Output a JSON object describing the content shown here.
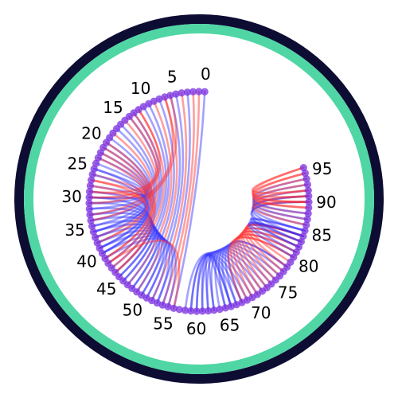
{
  "frame": {
    "outer_ring_color": "#0d0c33",
    "inner_ring_color": "#4fd6a4",
    "background_color": "#ffffff"
  },
  "node_color": "#7a2fe0",
  "tick_labels": [
    "0",
    "5",
    "10",
    "15",
    "20",
    "25",
    "30",
    "35",
    "40",
    "45",
    "50",
    "55",
    "60",
    "65",
    "70",
    "75",
    "80",
    "85",
    "90",
    "95"
  ],
  "link_colors": {
    "red": "#ff2a2a",
    "blue": "#3030ff"
  },
  "chart_data": {
    "type": "chord",
    "nodes": {
      "start": 0,
      "end": 96,
      "label_step": 5
    },
    "links": [
      {
        "source": 0,
        "target": 56,
        "color": "blue"
      },
      {
        "source": 1,
        "target": 55,
        "color": "red"
      },
      {
        "source": 2,
        "target": 54,
        "color": "red"
      },
      {
        "source": 3,
        "target": 53,
        "color": "blue"
      },
      {
        "source": 4,
        "target": 52,
        "color": "red"
      },
      {
        "source": 5,
        "target": 51,
        "color": "blue"
      },
      {
        "source": 6,
        "target": 50,
        "color": "blue"
      },
      {
        "source": 7,
        "target": 49,
        "color": "red"
      },
      {
        "source": 8,
        "target": 48,
        "color": "blue"
      },
      {
        "source": 9,
        "target": 47,
        "color": "red"
      },
      {
        "source": 10,
        "target": 46,
        "color": "blue"
      },
      {
        "source": 11,
        "target": 45,
        "color": "blue"
      },
      {
        "source": 12,
        "target": 44,
        "color": "red"
      },
      {
        "source": 13,
        "target": 43,
        "color": "blue"
      },
      {
        "source": 14,
        "target": 42,
        "color": "blue"
      },
      {
        "source": 15,
        "target": 41,
        "color": "red"
      },
      {
        "source": 16,
        "target": 40,
        "color": "blue"
      },
      {
        "source": 17,
        "target": 39,
        "color": "blue"
      },
      {
        "source": 18,
        "target": 38,
        "color": "red"
      },
      {
        "source": 19,
        "target": 37,
        "color": "blue"
      },
      {
        "source": 20,
        "target": 36,
        "color": "blue"
      },
      {
        "source": 21,
        "target": 35,
        "color": "blue"
      },
      {
        "source": 22,
        "target": 34,
        "color": "blue"
      },
      {
        "source": 23,
        "target": 33,
        "color": "blue"
      },
      {
        "source": 24,
        "target": 32,
        "color": "blue"
      },
      {
        "source": 25,
        "target": 31,
        "color": "blue"
      },
      {
        "source": 26,
        "target": 30,
        "color": "red"
      },
      {
        "source": 27,
        "target": 29,
        "color": "red"
      },
      {
        "source": 28,
        "target": 30,
        "color": "blue"
      },
      {
        "source": 25,
        "target": 40,
        "color": "blue"
      },
      {
        "source": 26,
        "target": 39,
        "color": "blue"
      },
      {
        "source": 27,
        "target": 38,
        "color": "red"
      },
      {
        "source": 28,
        "target": 37,
        "color": "red"
      },
      {
        "source": 29,
        "target": 36,
        "color": "blue"
      },
      {
        "source": 30,
        "target": 44,
        "color": "blue"
      },
      {
        "source": 31,
        "target": 45,
        "color": "blue"
      },
      {
        "source": 32,
        "target": 46,
        "color": "blue"
      },
      {
        "source": 33,
        "target": 47,
        "color": "blue"
      },
      {
        "source": 34,
        "target": 48,
        "color": "blue"
      },
      {
        "source": 35,
        "target": 49,
        "color": "blue"
      },
      {
        "source": 36,
        "target": 50,
        "color": "blue"
      },
      {
        "source": 37,
        "target": 51,
        "color": "blue"
      },
      {
        "source": 38,
        "target": 52,
        "color": "blue"
      },
      {
        "source": 39,
        "target": 53,
        "color": "blue"
      },
      {
        "source": 40,
        "target": 54,
        "color": "blue"
      },
      {
        "source": 41,
        "target": 55,
        "color": "blue"
      },
      {
        "source": 42,
        "target": 56,
        "color": "red"
      },
      {
        "source": 20,
        "target": 44,
        "color": "red"
      },
      {
        "source": 21,
        "target": 43,
        "color": "red"
      },
      {
        "source": 22,
        "target": 42,
        "color": "red"
      },
      {
        "source": 23,
        "target": 41,
        "color": "red"
      },
      {
        "source": 12,
        "target": 31,
        "color": "red"
      },
      {
        "source": 13,
        "target": 30,
        "color": "red"
      },
      {
        "source": 14,
        "target": 29,
        "color": "red"
      },
      {
        "source": 6,
        "target": 34,
        "color": "red"
      },
      {
        "source": 7,
        "target": 33,
        "color": "red"
      },
      {
        "source": 58,
        "target": 69,
        "color": "blue"
      },
      {
        "source": 59,
        "target": 68,
        "color": "blue"
      },
      {
        "source": 60,
        "target": 67,
        "color": "blue"
      },
      {
        "source": 61,
        "target": 66,
        "color": "blue"
      },
      {
        "source": 62,
        "target": 65,
        "color": "blue"
      },
      {
        "source": 63,
        "target": 66,
        "color": "blue"
      },
      {
        "source": 59,
        "target": 70,
        "color": "blue"
      },
      {
        "source": 60,
        "target": 71,
        "color": "blue"
      },
      {
        "source": 61,
        "target": 72,
        "color": "blue"
      },
      {
        "source": 62,
        "target": 73,
        "color": "blue"
      },
      {
        "source": 63,
        "target": 74,
        "color": "blue"
      },
      {
        "source": 64,
        "target": 75,
        "color": "blue"
      },
      {
        "source": 65,
        "target": 76,
        "color": "blue"
      },
      {
        "source": 66,
        "target": 77,
        "color": "blue"
      },
      {
        "source": 67,
        "target": 78,
        "color": "blue"
      },
      {
        "source": 68,
        "target": 78,
        "color": "blue"
      },
      {
        "source": 68,
        "target": 80,
        "color": "red"
      },
      {
        "source": 69,
        "target": 80,
        "color": "red"
      },
      {
        "source": 70,
        "target": 81,
        "color": "red"
      },
      {
        "source": 71,
        "target": 81,
        "color": "red"
      },
      {
        "source": 72,
        "target": 82,
        "color": "red"
      },
      {
        "source": 73,
        "target": 82,
        "color": "red"
      },
      {
        "source": 74,
        "target": 83,
        "color": "red"
      },
      {
        "source": 75,
        "target": 83,
        "color": "red"
      },
      {
        "source": 76,
        "target": 84,
        "color": "red"
      },
      {
        "source": 77,
        "target": 84,
        "color": "red"
      },
      {
        "source": 78,
        "target": 84,
        "color": "red"
      },
      {
        "source": 79,
        "target": 84,
        "color": "red"
      },
      {
        "source": 80,
        "target": 84,
        "color": "blue"
      },
      {
        "source": 81,
        "target": 84,
        "color": "blue"
      },
      {
        "source": 82,
        "target": 85,
        "color": "blue"
      },
      {
        "source": 83,
        "target": 85,
        "color": "blue"
      },
      {
        "source": 82,
        "target": 90,
        "color": "blue"
      },
      {
        "source": 83,
        "target": 90,
        "color": "blue"
      },
      {
        "source": 84,
        "target": 91,
        "color": "blue"
      },
      {
        "source": 85,
        "target": 91,
        "color": "blue"
      },
      {
        "source": 86,
        "target": 92,
        "color": "blue"
      },
      {
        "source": 86,
        "target": 90,
        "color": "red"
      },
      {
        "source": 87,
        "target": 91,
        "color": "red"
      },
      {
        "source": 87,
        "target": 93,
        "color": "blue"
      },
      {
        "source": 88,
        "target": 92,
        "color": "red"
      },
      {
        "source": 88,
        "target": 94,
        "color": "blue"
      },
      {
        "source": 89,
        "target": 93,
        "color": "red"
      },
      {
        "source": 89,
        "target": 95,
        "color": "red"
      },
      {
        "source": 90,
        "target": 94,
        "color": "red"
      },
      {
        "source": 90,
        "target": 96,
        "color": "red"
      },
      {
        "source": 91,
        "target": 95,
        "color": "red"
      },
      {
        "source": 92,
        "target": 96,
        "color": "red"
      }
    ]
  }
}
